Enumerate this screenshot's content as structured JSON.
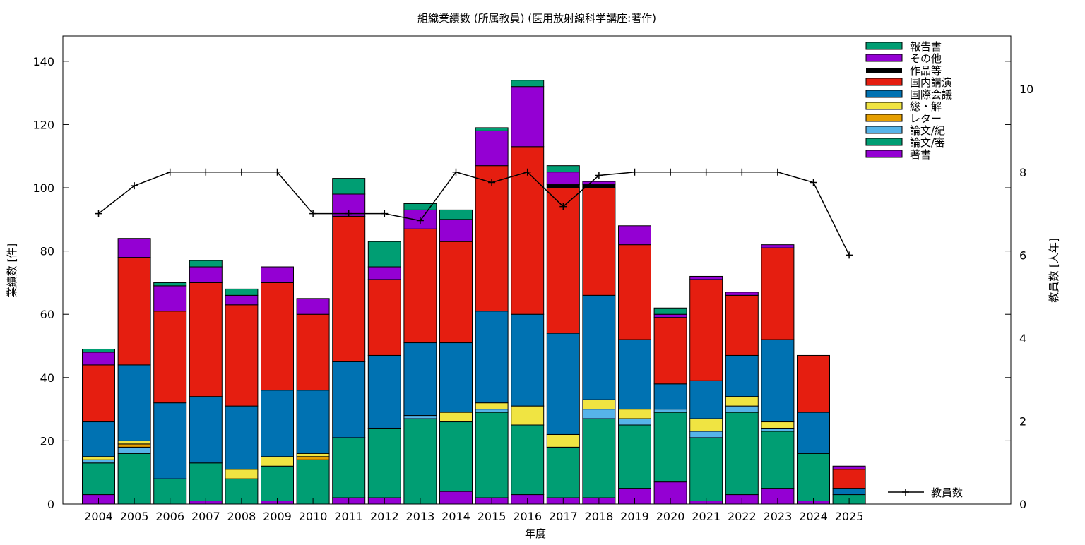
{
  "chart_data": {
    "type": "bar",
    "stacked": true,
    "title": "組織業績数 (所属教員) (医用放射線科学講座:著作)",
    "xlabel": "年度",
    "ylabel": "業績数 [件]",
    "y2label": "教員数 [人年]",
    "ylim": [
      0,
      148
    ],
    "y2lim": [
      0,
      11.28
    ],
    "yticks": [
      0,
      20,
      40,
      60,
      80,
      100,
      120,
      140
    ],
    "y2ticks": [
      0,
      2,
      4,
      6,
      8,
      10
    ],
    "legend_position": "top-right",
    "categories": [
      "2004",
      "2005",
      "2006",
      "2007",
      "2008",
      "2009",
      "2010",
      "2011",
      "2012",
      "2013",
      "2014",
      "2015",
      "2016",
      "2017",
      "2018",
      "2019",
      "2020",
      "2021",
      "2022",
      "2023",
      "2024",
      "2025"
    ],
    "series": [
      {
        "name": "著書",
        "color": "#9400d3",
        "values": [
          3,
          0,
          0,
          1,
          0,
          1,
          0,
          2,
          2,
          0,
          4,
          2,
          3,
          2,
          2,
          5,
          7,
          1,
          3,
          5,
          1,
          0
        ]
      },
      {
        "name": "論文/審",
        "color": "#009e73",
        "values": [
          10,
          16,
          8,
          12,
          8,
          11,
          14,
          19,
          22,
          27,
          22,
          27,
          22,
          16,
          25,
          20,
          22,
          20,
          26,
          18,
          15,
          3
        ]
      },
      {
        "name": "論文/紀",
        "color": "#56b4e9",
        "values": [
          1,
          2,
          0,
          0,
          0,
          0,
          0,
          0,
          0,
          1,
          0,
          1,
          0,
          0,
          3,
          2,
          1,
          2,
          2,
          1,
          0,
          0
        ]
      },
      {
        "name": "レター",
        "color": "#e69f00",
        "values": [
          0,
          1,
          0,
          0,
          0,
          0,
          1,
          0,
          0,
          0,
          0,
          0,
          0,
          0,
          0,
          0,
          0,
          0,
          0,
          0,
          0,
          0
        ]
      },
      {
        "name": "総・解",
        "color": "#f0e442",
        "values": [
          1,
          1,
          0,
          0,
          3,
          3,
          1,
          0,
          0,
          0,
          3,
          2,
          6,
          4,
          3,
          3,
          0,
          4,
          3,
          2,
          0,
          0
        ]
      },
      {
        "name": "国際会議",
        "color": "#0072b2",
        "values": [
          11,
          24,
          24,
          21,
          20,
          21,
          20,
          24,
          23,
          23,
          22,
          29,
          29,
          32,
          33,
          22,
          8,
          12,
          13,
          26,
          13,
          2
        ]
      },
      {
        "name": "国内講演",
        "color": "#e51e10",
        "values": [
          18,
          34,
          29,
          36,
          32,
          34,
          24,
          46,
          24,
          36,
          32,
          46,
          53,
          46,
          34,
          30,
          21,
          32,
          19,
          29,
          18,
          6
        ]
      },
      {
        "name": "作品等",
        "color": "#000000",
        "values": [
          0,
          0,
          0,
          0,
          0,
          0,
          0,
          0,
          0,
          0,
          0,
          0,
          0,
          1,
          1,
          0,
          0,
          0,
          0,
          0,
          0,
          0
        ]
      },
      {
        "name": "その他",
        "color": "#9400d3",
        "values": [
          4,
          6,
          8,
          5,
          3,
          5,
          5,
          7,
          4,
          6,
          7,
          11,
          19,
          4,
          1,
          6,
          1,
          1,
          1,
          1,
          0,
          1
        ]
      },
      {
        "name": "報告書",
        "color": "#009e73",
        "values": [
          1,
          0,
          1,
          2,
          2,
          0,
          0,
          5,
          8,
          2,
          3,
          1,
          2,
          2,
          0,
          0,
          2,
          0,
          0,
          0,
          0,
          0
        ]
      }
    ],
    "line": {
      "name": "教員数",
      "color": "#000000",
      "axis": "y2",
      "values": [
        7,
        7.67,
        8,
        8,
        8,
        8,
        7,
        7,
        7,
        6.83,
        8,
        7.75,
        8,
        7.17,
        7.92,
        8,
        8,
        8,
        8,
        8,
        7.75,
        6
      ]
    }
  }
}
